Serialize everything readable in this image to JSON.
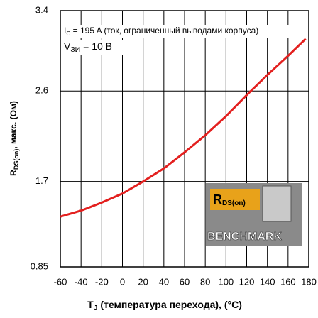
{
  "chart_data": {
    "type": "line",
    "xlabel": {
      "text": "T",
      "sub": "J",
      "rest": " (температура перехода), (°C)"
    },
    "ylabel": {
      "text": "R",
      "sub": "DS(on)",
      "rest": ", макс. (Ом)"
    },
    "annotations": [
      {
        "text": "I",
        "sub": "C",
        "rest": " = 195 A (ток, ограниченный выводами корпуса)"
      },
      {
        "text": "V",
        "sub": "ЗИ",
        "rest": " = 10 В"
      }
    ],
    "x": [
      -60,
      -40,
      -20,
      0,
      20,
      40,
      60,
      80,
      100,
      120,
      140,
      160,
      177
    ],
    "series": [
      {
        "color": "#e3201f",
        "values": [
          1.35,
          1.41,
          1.49,
          1.58,
          1.7,
          1.83,
          1.99,
          2.16,
          2.35,
          2.56,
          2.76,
          2.95,
          3.12
        ]
      }
    ],
    "xlim": [
      -60,
      180
    ],
    "xticks": [
      -60,
      -40,
      -20,
      0,
      20,
      40,
      60,
      80,
      100,
      120,
      140,
      160,
      180
    ],
    "ylim": [
      0.85,
      3.4
    ],
    "yticks": [
      0.85,
      1.7,
      2.6,
      3.4
    ],
    "grid": true
  },
  "logo": {
    "text": "R",
    "sub": "DS(on)",
    "label": "BENCHMARK"
  }
}
